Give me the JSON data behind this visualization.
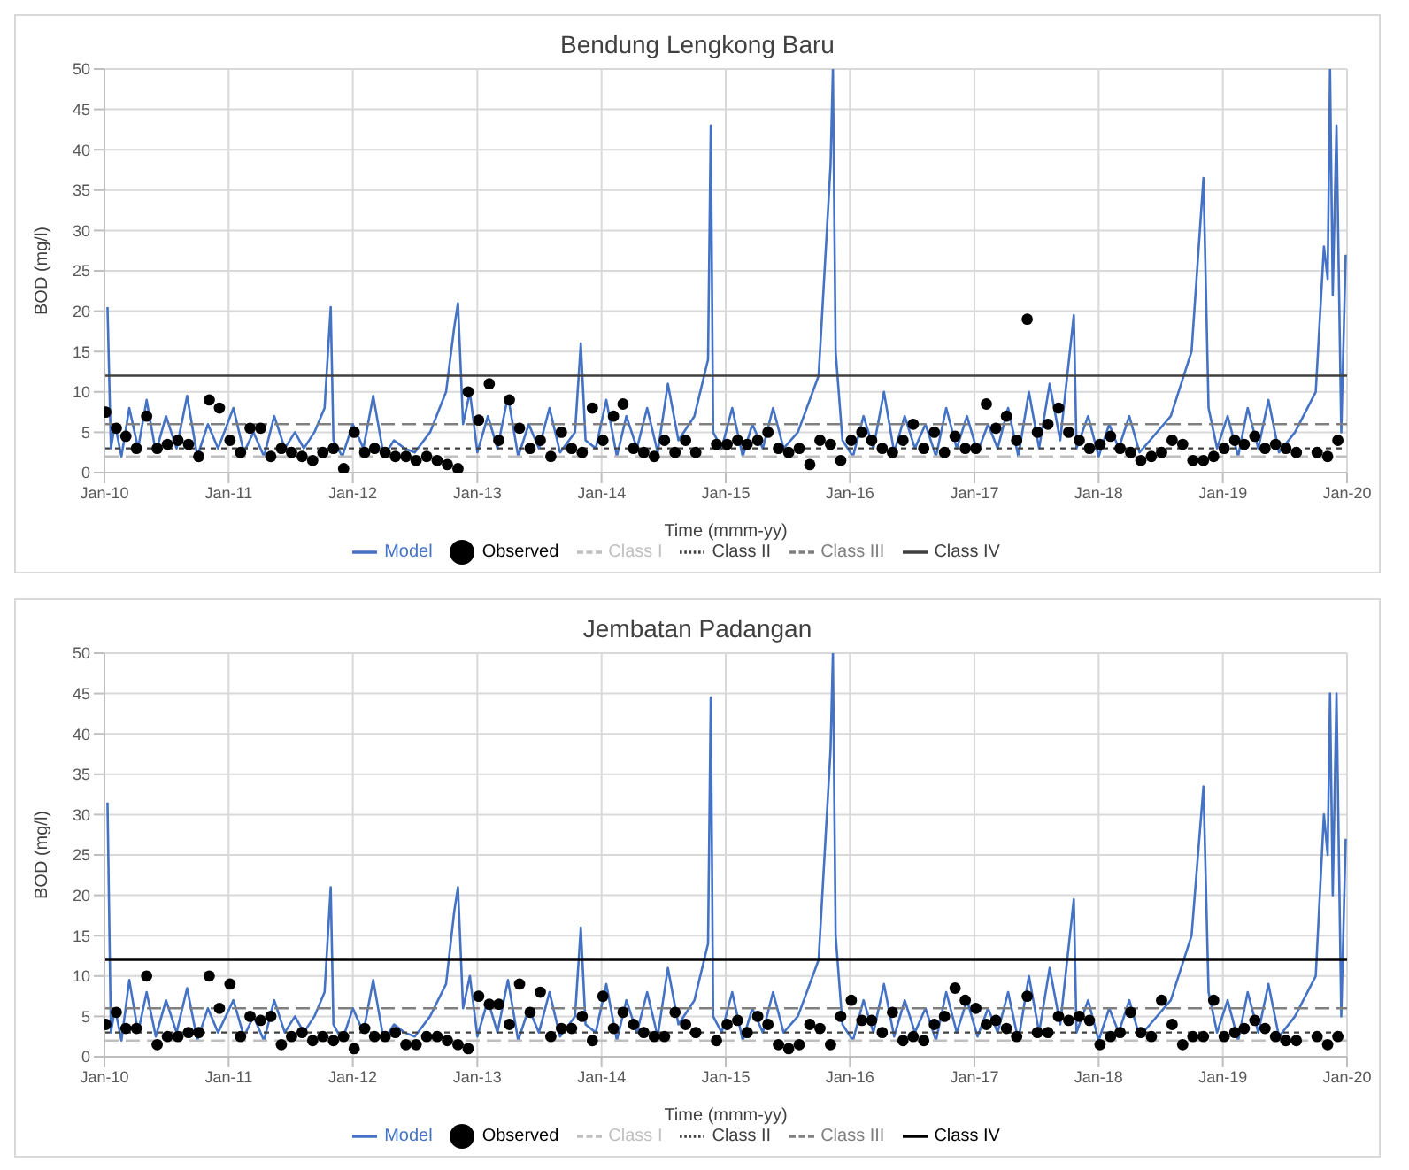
{
  "chart_data": [
    {
      "type": "line",
      "title": "Bendung Lengkong Baru",
      "xlabel": "Time (mmm-yy)",
      "ylabel": "BOD (mg/l)",
      "ylim": [
        0,
        50
      ],
      "yticks": [
        0,
        5,
        10,
        15,
        20,
        25,
        30,
        35,
        40,
        45,
        50
      ],
      "xlim": [
        "2010-01",
        "2020-01"
      ],
      "xticks": [
        {
          "value": "2010-01",
          "label": "Jan-10"
        },
        {
          "value": "2011-01",
          "label": "Jan-11"
        },
        {
          "value": "2012-01",
          "label": "Jan-12"
        },
        {
          "value": "2013-01",
          "label": "Jan-13"
        },
        {
          "value": "2014-01",
          "label": "Jan-14"
        },
        {
          "value": "2015-01",
          "label": "Jan-15"
        },
        {
          "value": "2016-01",
          "label": "Jan-16"
        },
        {
          "value": "2017-01",
          "label": "Jan-17"
        },
        {
          "value": "2018-01",
          "label": "Jan-18"
        },
        {
          "value": "2019-01",
          "label": "Jan-19"
        },
        {
          "value": "2020-01",
          "label": "Jan-20"
        }
      ],
      "grid": true,
      "legend": "bottom",
      "series": [
        {
          "name": "Model",
          "type": "line",
          "color": "#4472c4",
          "marker": "none",
          "x": [
            "2010-01-10",
            "2010-01-20",
            "2010-02-01",
            "2010-02-20",
            "2010-03-15",
            "2010-04-10",
            "2010-05-05",
            "2010-06-01",
            "2010-07-01",
            "2010-08-01",
            "2010-09-01",
            "2010-10-01",
            "2010-11-01",
            "2010-12-01",
            "2011-01-15",
            "2011-02-15",
            "2011-03-15",
            "2011-04-15",
            "2011-05-15",
            "2011-06-15",
            "2011-07-15",
            "2011-08-10",
            "2011-09-10",
            "2011-10-10",
            "2011-10-28",
            "2011-11-05",
            "2011-12-01",
            "2012-01-01",
            "2012-02-01",
            "2012-03-01",
            "2012-04-01",
            "2012-05-01",
            "2012-06-01",
            "2012-07-01",
            "2012-08-15",
            "2012-10-01",
            "2012-10-25",
            "2012-11-05",
            "2012-11-20",
            "2012-12-10",
            "2013-01-01",
            "2013-02-01",
            "2013-03-01",
            "2013-04-01",
            "2013-05-01",
            "2013-06-01",
            "2013-07-01",
            "2013-08-01",
            "2013-09-01",
            "2013-10-15",
            "2013-11-01",
            "2013-11-15",
            "2013-12-15",
            "2014-01-15",
            "2014-02-15",
            "2014-03-15",
            "2014-04-15",
            "2014-05-15",
            "2014-06-15",
            "2014-07-15",
            "2014-08-15",
            "2014-10-01",
            "2014-11-10",
            "2014-11-18",
            "2014-11-25",
            "2014-12-20",
            "2015-01-20",
            "2015-02-20",
            "2015-03-20",
            "2015-04-20",
            "2015-05-20",
            "2015-06-20",
            "2015-08-01",
            "2015-10-01",
            "2015-11-05",
            "2015-11-12",
            "2015-11-20",
            "2015-12-10",
            "2016-01-10",
            "2016-02-10",
            "2016-03-10",
            "2016-04-10",
            "2016-05-10",
            "2016-06-10",
            "2016-07-10",
            "2016-08-10",
            "2016-09-10",
            "2016-10-10",
            "2016-11-10",
            "2016-12-10",
            "2017-01-10",
            "2017-02-10",
            "2017-03-10",
            "2017-04-10",
            "2017-05-10",
            "2017-06-10",
            "2017-07-10",
            "2017-08-10",
            "2017-09-10",
            "2017-10-20",
            "2017-10-28",
            "2017-12-01",
            "2018-01-01",
            "2018-02-01",
            "2018-03-01",
            "2018-04-01",
            "2018-05-01",
            "2018-06-01",
            "2018-08-01",
            "2018-10-01",
            "2018-11-05",
            "2018-11-20",
            "2018-12-15",
            "2019-01-15",
            "2019-02-15",
            "2019-03-15",
            "2019-04-15",
            "2019-05-15",
            "2019-06-15",
            "2019-08-01",
            "2019-10-01",
            "2019-10-25",
            "2019-11-05",
            "2019-11-12",
            "2019-11-20",
            "2019-12-01",
            "2019-12-15",
            "2019-12-28"
          ],
          "values": [
            20.5,
            3,
            6,
            2,
            8,
            3,
            9,
            2.5,
            7,
            3,
            9.5,
            2,
            6,
            3,
            8,
            2.5,
            5,
            2,
            7,
            3,
            5,
            3,
            5,
            8,
            20.5,
            4,
            2,
            6,
            3,
            9.5,
            2,
            4,
            3,
            2.5,
            5,
            10,
            18,
            21,
            6,
            10,
            2.5,
            7,
            3,
            9.5,
            2,
            6,
            3,
            8,
            2.5,
            5,
            16,
            4,
            3,
            9,
            2,
            7,
            3,
            8,
            2.5,
            11,
            4,
            7,
            14,
            43,
            5,
            3,
            8,
            2,
            6,
            3,
            8,
            3,
            5,
            12,
            38,
            50,
            15,
            4,
            2,
            7,
            3,
            10,
            2.5,
            7,
            3,
            6,
            2,
            8,
            3,
            7,
            2.5,
            6,
            3,
            8,
            2,
            10,
            3,
            11,
            4,
            19.5,
            3,
            7,
            2,
            6,
            3,
            7,
            2.5,
            4,
            7,
            15,
            36.5,
            8,
            3,
            7,
            2,
            8,
            3,
            9,
            2.5,
            5,
            10,
            28,
            24,
            50,
            22,
            43,
            5,
            27
          ]
        },
        {
          "name": "Observed",
          "type": "scatter",
          "color": "#000000",
          "marker": "circle",
          "x": [
            "2010-01-05",
            "2010-02-05",
            "2010-03-05",
            "2010-04-05",
            "2010-05-05",
            "2010-06-05",
            "2010-07-05",
            "2010-08-05",
            "2010-09-05",
            "2010-10-05",
            "2010-11-05",
            "2010-12-05",
            "2011-01-05",
            "2011-02-05",
            "2011-03-05",
            "2011-04-05",
            "2011-05-05",
            "2011-06-05",
            "2011-07-05",
            "2011-08-05",
            "2011-09-05",
            "2011-10-05",
            "2011-11-05",
            "2011-12-05",
            "2012-01-05",
            "2012-02-05",
            "2012-03-05",
            "2012-04-05",
            "2012-05-05",
            "2012-06-05",
            "2012-07-05",
            "2012-08-05",
            "2012-09-05",
            "2012-10-05",
            "2012-11-05",
            "2012-12-05",
            "2013-01-05",
            "2013-02-05",
            "2013-03-05",
            "2013-04-05",
            "2013-05-05",
            "2013-06-05",
            "2013-07-05",
            "2013-08-05",
            "2013-09-05",
            "2013-10-05",
            "2013-11-05",
            "2013-12-05",
            "2014-01-05",
            "2014-02-05",
            "2014-03-05",
            "2014-04-05",
            "2014-05-05",
            "2014-06-05",
            "2014-07-05",
            "2014-08-05",
            "2014-09-05",
            "2014-10-05",
            "2014-12-05",
            "2015-01-05",
            "2015-02-05",
            "2015-03-05",
            "2015-04-05",
            "2015-05-05",
            "2015-06-05",
            "2015-07-05",
            "2015-08-05",
            "2015-09-05",
            "2015-10-05",
            "2015-11-05",
            "2015-12-05",
            "2016-01-05",
            "2016-02-05",
            "2016-03-05",
            "2016-04-05",
            "2016-05-05",
            "2016-06-05",
            "2016-07-05",
            "2016-08-05",
            "2016-09-05",
            "2016-10-05",
            "2016-11-05",
            "2016-12-05",
            "2017-01-05",
            "2017-02-05",
            "2017-03-05",
            "2017-04-05",
            "2017-05-05",
            "2017-06-05",
            "2017-07-05",
            "2017-08-05",
            "2017-09-05",
            "2017-10-05",
            "2017-11-05",
            "2017-12-05",
            "2018-01-05",
            "2018-02-05",
            "2018-03-05",
            "2018-04-05",
            "2018-05-05",
            "2018-06-05",
            "2018-07-05",
            "2018-08-05",
            "2018-09-05",
            "2018-10-05",
            "2018-11-05",
            "2018-12-05",
            "2019-01-05",
            "2019-02-05",
            "2019-03-05",
            "2019-04-05",
            "2019-05-05",
            "2019-06-05",
            "2019-07-05",
            "2019-08-05",
            "2019-10-05",
            "2019-11-05",
            "2019-12-05"
          ],
          "values": [
            7.5,
            5.5,
            4.5,
            3,
            7,
            3,
            3.5,
            4,
            3.5,
            2,
            9,
            8,
            4,
            2.5,
            5.5,
            5.5,
            2,
            3,
            2.5,
            2,
            1.5,
            2.5,
            3,
            0.5,
            5,
            2.5,
            3,
            2.5,
            2,
            2,
            1.5,
            2,
            1.5,
            1,
            0.5,
            10,
            6.5,
            11,
            4,
            9,
            5.5,
            3,
            4,
            2,
            5,
            3,
            2.5,
            8,
            4,
            7,
            8.5,
            3,
            2.5,
            2,
            4,
            2.5,
            4,
            2.5,
            3.5,
            3.5,
            4,
            3.5,
            4,
            5,
            3,
            2.5,
            3,
            1,
            4,
            3.5,
            1.5,
            4,
            5,
            4,
            3,
            2.5,
            4,
            6,
            3,
            5,
            2.5,
            4.5,
            3,
            3,
            8.5,
            5.5,
            7,
            4,
            19,
            5,
            6,
            8,
            5,
            4,
            3,
            3.5,
            4.5,
            3,
            2.5,
            1.5,
            2,
            2.5,
            4,
            3.5,
            1.5,
            1.5,
            2,
            3,
            4,
            3.5,
            4.5,
            3,
            3.5,
            3,
            2.5,
            2.5,
            2,
            4
          ]
        },
        {
          "name": "Class I",
          "type": "line",
          "color": "#bfbfbf",
          "marker": "none",
          "line_style": "dashed",
          "x": [
            "2010-01",
            "2020-01"
          ],
          "values": [
            2,
            2
          ]
        },
        {
          "name": "Class II",
          "type": "line",
          "color": "#404040",
          "marker": "none",
          "line_style": "dotted",
          "x": [
            "2010-01",
            "2020-01"
          ],
          "values": [
            3,
            3
          ]
        },
        {
          "name": "Class III",
          "type": "line",
          "color": "#7f7f7f",
          "marker": "none",
          "line_style": "dashed",
          "x": [
            "2010-01",
            "2020-01"
          ],
          "values": [
            6,
            6
          ]
        },
        {
          "name": "Class IV",
          "type": "line",
          "color": "#404040",
          "marker": "none",
          "line_style": "solid",
          "x": [
            "2010-01",
            "2020-01"
          ],
          "values": [
            12,
            12
          ]
        }
      ]
    },
    {
      "type": "line",
      "title": "Jembatan Padangan",
      "xlabel": "Time (mmm-yy)",
      "ylabel": "BOD (mg/l)",
      "ylim": [
        0,
        50
      ],
      "yticks": [
        0,
        5,
        10,
        15,
        20,
        25,
        30,
        35,
        40,
        45,
        50
      ],
      "xlim": [
        "2010-01",
        "2020-01"
      ],
      "xticks": [
        {
          "value": "2010-01",
          "label": "Jan-10"
        },
        {
          "value": "2011-01",
          "label": "Jan-11"
        },
        {
          "value": "2012-01",
          "label": "Jan-12"
        },
        {
          "value": "2013-01",
          "label": "Jan-13"
        },
        {
          "value": "2014-01",
          "label": "Jan-14"
        },
        {
          "value": "2015-01",
          "label": "Jan-15"
        },
        {
          "value": "2016-01",
          "label": "Jan-16"
        },
        {
          "value": "2017-01",
          "label": "Jan-17"
        },
        {
          "value": "2018-01",
          "label": "Jan-18"
        },
        {
          "value": "2019-01",
          "label": "Jan-19"
        },
        {
          "value": "2020-01",
          "label": "Jan-20"
        }
      ],
      "grid": true,
      "legend": "bottom",
      "series": [
        {
          "name": "Model",
          "type": "line",
          "color": "#4472c4",
          "marker": "none",
          "x": [
            "2010-01-10",
            "2010-01-20",
            "2010-02-01",
            "2010-02-20",
            "2010-03-15",
            "2010-04-10",
            "2010-05-05",
            "2010-06-01",
            "2010-07-01",
            "2010-08-01",
            "2010-09-01",
            "2010-10-01",
            "2010-11-01",
            "2010-12-01",
            "2011-01-15",
            "2011-02-15",
            "2011-03-15",
            "2011-04-15",
            "2011-05-15",
            "2011-06-15",
            "2011-07-15",
            "2011-08-10",
            "2011-09-10",
            "2011-10-10",
            "2011-10-28",
            "2011-11-05",
            "2011-12-01",
            "2012-01-01",
            "2012-02-01",
            "2012-03-01",
            "2012-04-01",
            "2012-05-01",
            "2012-06-01",
            "2012-07-01",
            "2012-08-15",
            "2012-10-01",
            "2012-10-25",
            "2012-11-05",
            "2012-11-20",
            "2012-12-10",
            "2013-01-01",
            "2013-02-01",
            "2013-03-01",
            "2013-04-01",
            "2013-05-01",
            "2013-06-01",
            "2013-07-01",
            "2013-08-01",
            "2013-09-01",
            "2013-10-15",
            "2013-11-01",
            "2013-11-15",
            "2013-12-15",
            "2014-01-15",
            "2014-02-15",
            "2014-03-15",
            "2014-04-15",
            "2014-05-15",
            "2014-06-15",
            "2014-07-15",
            "2014-08-15",
            "2014-10-01",
            "2014-11-10",
            "2014-11-18",
            "2014-11-25",
            "2014-12-20",
            "2015-01-20",
            "2015-02-20",
            "2015-03-20",
            "2015-04-20",
            "2015-05-20",
            "2015-06-20",
            "2015-08-01",
            "2015-10-01",
            "2015-11-05",
            "2015-11-12",
            "2015-11-20",
            "2015-12-10",
            "2016-01-10",
            "2016-02-10",
            "2016-03-10",
            "2016-04-10",
            "2016-05-10",
            "2016-06-10",
            "2016-07-10",
            "2016-08-10",
            "2016-09-10",
            "2016-10-10",
            "2016-11-10",
            "2016-12-10",
            "2017-01-10",
            "2017-02-10",
            "2017-03-10",
            "2017-04-10",
            "2017-05-10",
            "2017-06-10",
            "2017-07-10",
            "2017-08-10",
            "2017-09-10",
            "2017-10-20",
            "2017-10-28",
            "2017-12-01",
            "2018-01-01",
            "2018-02-01",
            "2018-03-01",
            "2018-04-01",
            "2018-05-01",
            "2018-06-01",
            "2018-08-01",
            "2018-10-01",
            "2018-11-05",
            "2018-11-20",
            "2018-12-15",
            "2019-01-15",
            "2019-02-15",
            "2019-03-15",
            "2019-04-15",
            "2019-05-15",
            "2019-06-15",
            "2019-08-01",
            "2019-10-01",
            "2019-10-25",
            "2019-11-05",
            "2019-11-12",
            "2019-11-20",
            "2019-12-01",
            "2019-12-15",
            "2019-12-28"
          ],
          "values": [
            31.5,
            3,
            6,
            2,
            9.5,
            3,
            8,
            2.5,
            7,
            3,
            8.5,
            2,
            6,
            3,
            7,
            2.5,
            5,
            2,
            7,
            3,
            5,
            3,
            5,
            8,
            21,
            4,
            2,
            6,
            3,
            9.5,
            2,
            4,
            3,
            2.5,
            5,
            9,
            18,
            21,
            6,
            10,
            2.5,
            7,
            3,
            9.5,
            2,
            6,
            3,
            8,
            2.5,
            5,
            16,
            4,
            3,
            9,
            2,
            7,
            3,
            8,
            2.5,
            11,
            4,
            7,
            14,
            44.5,
            5,
            3,
            8,
            2,
            6,
            3,
            8,
            3,
            5,
            12,
            38,
            50,
            15,
            4,
            2,
            7,
            3,
            9,
            2.5,
            7,
            3,
            6,
            2,
            8,
            3,
            7,
            2.5,
            6,
            3,
            8,
            2,
            10,
            3,
            11,
            4,
            19.5,
            3,
            7,
            2,
            6,
            3,
            7,
            2.5,
            4,
            7,
            15,
            33.5,
            8,
            3,
            7,
            2,
            8,
            3,
            9,
            2.5,
            5,
            10,
            30,
            25,
            45,
            20,
            45,
            5,
            27
          ]
        },
        {
          "name": "Observed",
          "type": "scatter",
          "color": "#000000",
          "marker": "circle",
          "x": [
            "2010-01-05",
            "2010-02-05",
            "2010-03-05",
            "2010-04-05",
            "2010-05-05",
            "2010-06-05",
            "2010-07-05",
            "2010-08-05",
            "2010-09-05",
            "2010-10-05",
            "2010-11-05",
            "2010-12-05",
            "2011-01-05",
            "2011-02-05",
            "2011-03-05",
            "2011-04-05",
            "2011-05-05",
            "2011-06-05",
            "2011-07-05",
            "2011-08-05",
            "2011-09-05",
            "2011-10-05",
            "2011-11-05",
            "2011-12-05",
            "2012-01-05",
            "2012-02-05",
            "2012-03-05",
            "2012-04-05",
            "2012-05-05",
            "2012-06-05",
            "2012-07-05",
            "2012-08-05",
            "2012-09-05",
            "2012-10-05",
            "2012-11-05",
            "2012-12-05",
            "2013-01-05",
            "2013-02-05",
            "2013-03-05",
            "2013-04-05",
            "2013-05-05",
            "2013-06-05",
            "2013-07-05",
            "2013-08-05",
            "2013-09-05",
            "2013-10-05",
            "2013-11-05",
            "2013-12-05",
            "2014-01-05",
            "2014-02-05",
            "2014-03-05",
            "2014-04-05",
            "2014-05-05",
            "2014-06-05",
            "2014-07-05",
            "2014-08-05",
            "2014-09-05",
            "2014-10-05",
            "2014-12-05",
            "2015-01-05",
            "2015-02-05",
            "2015-03-05",
            "2015-04-05",
            "2015-05-05",
            "2015-06-05",
            "2015-07-05",
            "2015-08-05",
            "2015-09-05",
            "2015-10-05",
            "2015-11-05",
            "2015-12-05",
            "2016-01-05",
            "2016-02-05",
            "2016-03-05",
            "2016-04-05",
            "2016-05-05",
            "2016-06-05",
            "2016-07-05",
            "2016-08-05",
            "2016-09-05",
            "2016-10-05",
            "2016-11-05",
            "2016-12-05",
            "2017-01-05",
            "2017-02-05",
            "2017-03-05",
            "2017-04-05",
            "2017-05-05",
            "2017-06-05",
            "2017-07-05",
            "2017-08-05",
            "2017-09-05",
            "2017-10-05",
            "2017-11-05",
            "2017-12-05",
            "2018-01-05",
            "2018-02-05",
            "2018-03-05",
            "2018-04-05",
            "2018-05-05",
            "2018-06-05",
            "2018-07-05",
            "2018-08-05",
            "2018-09-05",
            "2018-10-05",
            "2018-11-05",
            "2018-12-05",
            "2019-01-05",
            "2019-02-05",
            "2019-03-05",
            "2019-04-05",
            "2019-05-05",
            "2019-06-05",
            "2019-07-05",
            "2019-08-05",
            "2019-10-05",
            "2019-11-05",
            "2019-12-05"
          ],
          "values": [
            4,
            5.5,
            3.5,
            3.5,
            10,
            1.5,
            2.5,
            2.5,
            3,
            3,
            10,
            6,
            9,
            2.5,
            5,
            4.5,
            5,
            1.5,
            2.5,
            3,
            2,
            2.5,
            2,
            2.5,
            1,
            3.5,
            2.5,
            2.5,
            3,
            1.5,
            1.5,
            2.5,
            2.5,
            2,
            1.5,
            1,
            7.5,
            6.5,
            6.5,
            4,
            9,
            5.5,
            8,
            2.5,
            3.5,
            3.5,
            5,
            2,
            7.5,
            3.5,
            5.5,
            4,
            3,
            2.5,
            2.5,
            5.5,
            4,
            3,
            2,
            4,
            4.5,
            3,
            5,
            4,
            1.5,
            1,
            1.5,
            4,
            3.5,
            1.5,
            5,
            7,
            4.5,
            4.5,
            3,
            5.5,
            2,
            2.5,
            2,
            4,
            5,
            8.5,
            7,
            6,
            4,
            4.5,
            3.5,
            2.5,
            7.5,
            3,
            3,
            5,
            4.5,
            5,
            4.5,
            1.5,
            2.5,
            3,
            5.5,
            3,
            2.5,
            7,
            4,
            1.5,
            2.5,
            2.5,
            7,
            2.5,
            3,
            3.5,
            4.5,
            3.5,
            2.5,
            2,
            2,
            2.5,
            1.5,
            2.5
          ]
        },
        {
          "name": "Class I",
          "type": "line",
          "color": "#bfbfbf",
          "marker": "none",
          "line_style": "dashed",
          "x": [
            "2010-01",
            "2020-01"
          ],
          "values": [
            2,
            2
          ]
        },
        {
          "name": "Class II",
          "type": "line",
          "color": "#404040",
          "marker": "none",
          "line_style": "dotted",
          "x": [
            "2010-01",
            "2020-01"
          ],
          "values": [
            3,
            3
          ]
        },
        {
          "name": "Class III",
          "type": "line",
          "color": "#7f7f7f",
          "marker": "none",
          "line_style": "dashed",
          "x": [
            "2010-01",
            "2020-01"
          ],
          "values": [
            6,
            6
          ]
        },
        {
          "name": "Class IV",
          "type": "line",
          "color": "#000000",
          "marker": "none",
          "line_style": "solid",
          "x": [
            "2010-01",
            "2020-01"
          ],
          "values": [
            12,
            12
          ]
        }
      ]
    }
  ]
}
